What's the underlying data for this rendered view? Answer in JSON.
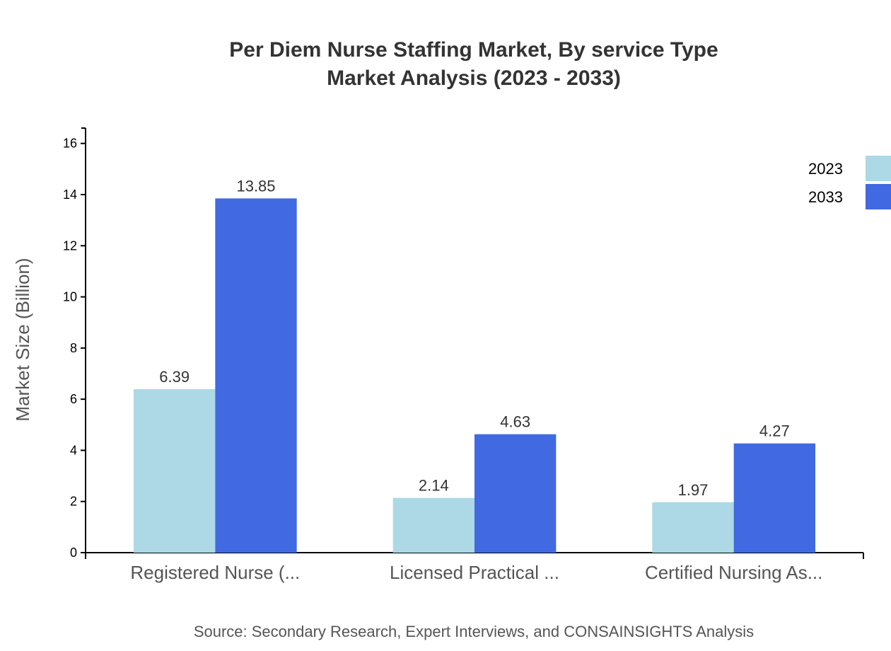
{
  "chart_data": {
    "type": "bar",
    "title": [
      "Per Diem Nurse Staffing Market, By service Type",
      "Market Analysis (2023 - 2033)"
    ],
    "xlabel": "",
    "ylabel": "Market Size (Billion)",
    "categories": [
      "Registered Nurse (...",
      "Licensed Practical ...",
      "Certified Nursing As..."
    ],
    "series": [
      {
        "name": "2023",
        "values": [
          6.39,
          2.14,
          1.97
        ],
        "color": "#add8e6"
      },
      {
        "name": "2033",
        "values": [
          13.85,
          4.63,
          4.27
        ],
        "color": "#4169e1"
      }
    ],
    "ylim": [
      0,
      16.6
    ],
    "yticks": [
      0,
      2,
      4,
      6,
      8,
      10,
      12,
      14,
      16
    ],
    "grid": false,
    "legend": "top-right",
    "source": "Source: Secondary Research, Expert Interviews, and CONSAINSIGHTS Analysis"
  }
}
